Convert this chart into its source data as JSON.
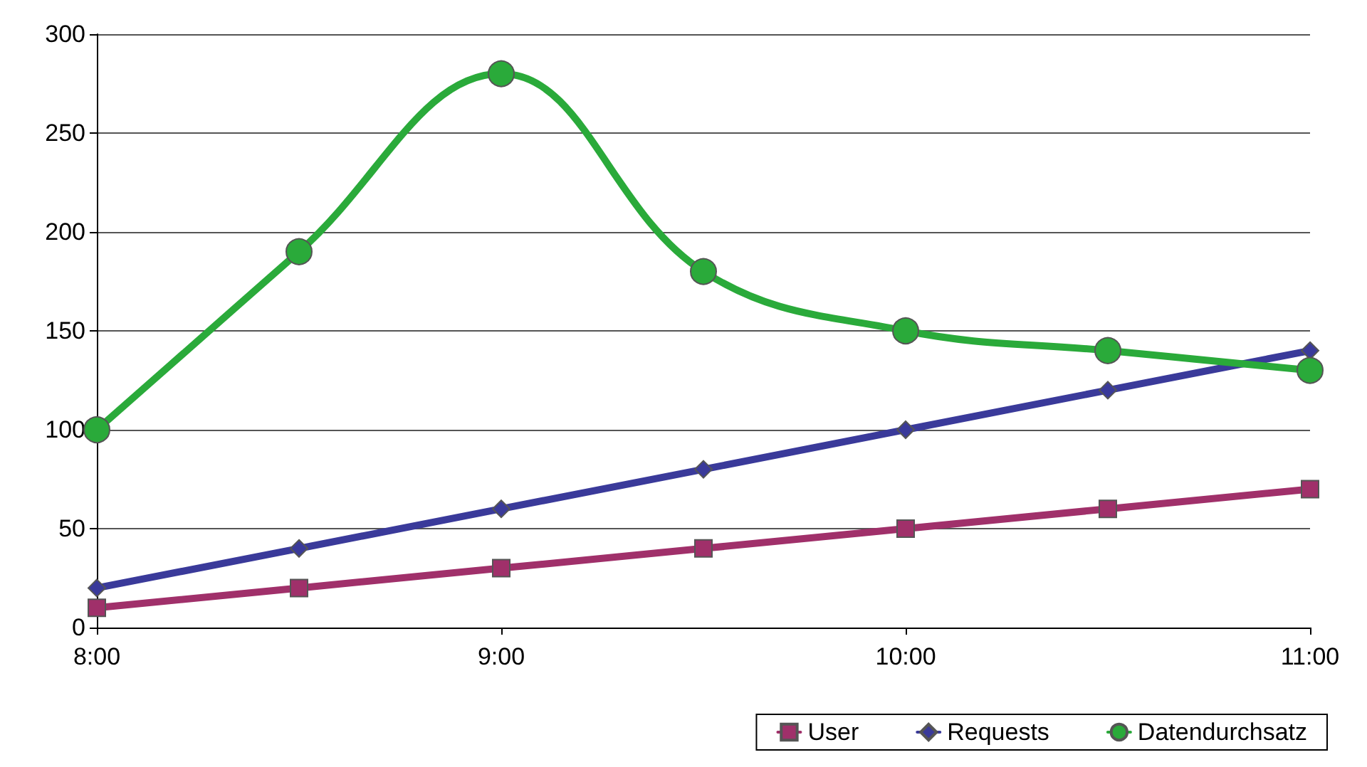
{
  "chart_data": {
    "type": "line",
    "x": [
      8,
      8.5,
      9,
      9.5,
      10,
      10.5,
      11
    ],
    "xlim": [
      8,
      11
    ],
    "xticks": [
      {
        "value": 8,
        "label": "8:00"
      },
      {
        "value": 9,
        "label": "9:00"
      },
      {
        "value": 10,
        "label": "10:00"
      },
      {
        "value": 11,
        "label": "11:00"
      }
    ],
    "ylim": [
      0,
      300
    ],
    "yticks": [
      0,
      50,
      100,
      150,
      200,
      250,
      300
    ],
    "grid": "y",
    "legend": "bottom right",
    "series": [
      {
        "name": "User",
        "color": "#a0306a",
        "marker": "square",
        "values": [
          10,
          20,
          30,
          40,
          50,
          60,
          70
        ]
      },
      {
        "name": "Requests",
        "color": "#3a3a9a",
        "marker": "diamond",
        "values": [
          20,
          40,
          60,
          80,
          100,
          120,
          140
        ]
      },
      {
        "name": "Datendurchsatz",
        "color": "#2aaa3a",
        "marker": "circle",
        "values": [
          100,
          190,
          280,
          180,
          150,
          140,
          130
        ]
      }
    ]
  }
}
